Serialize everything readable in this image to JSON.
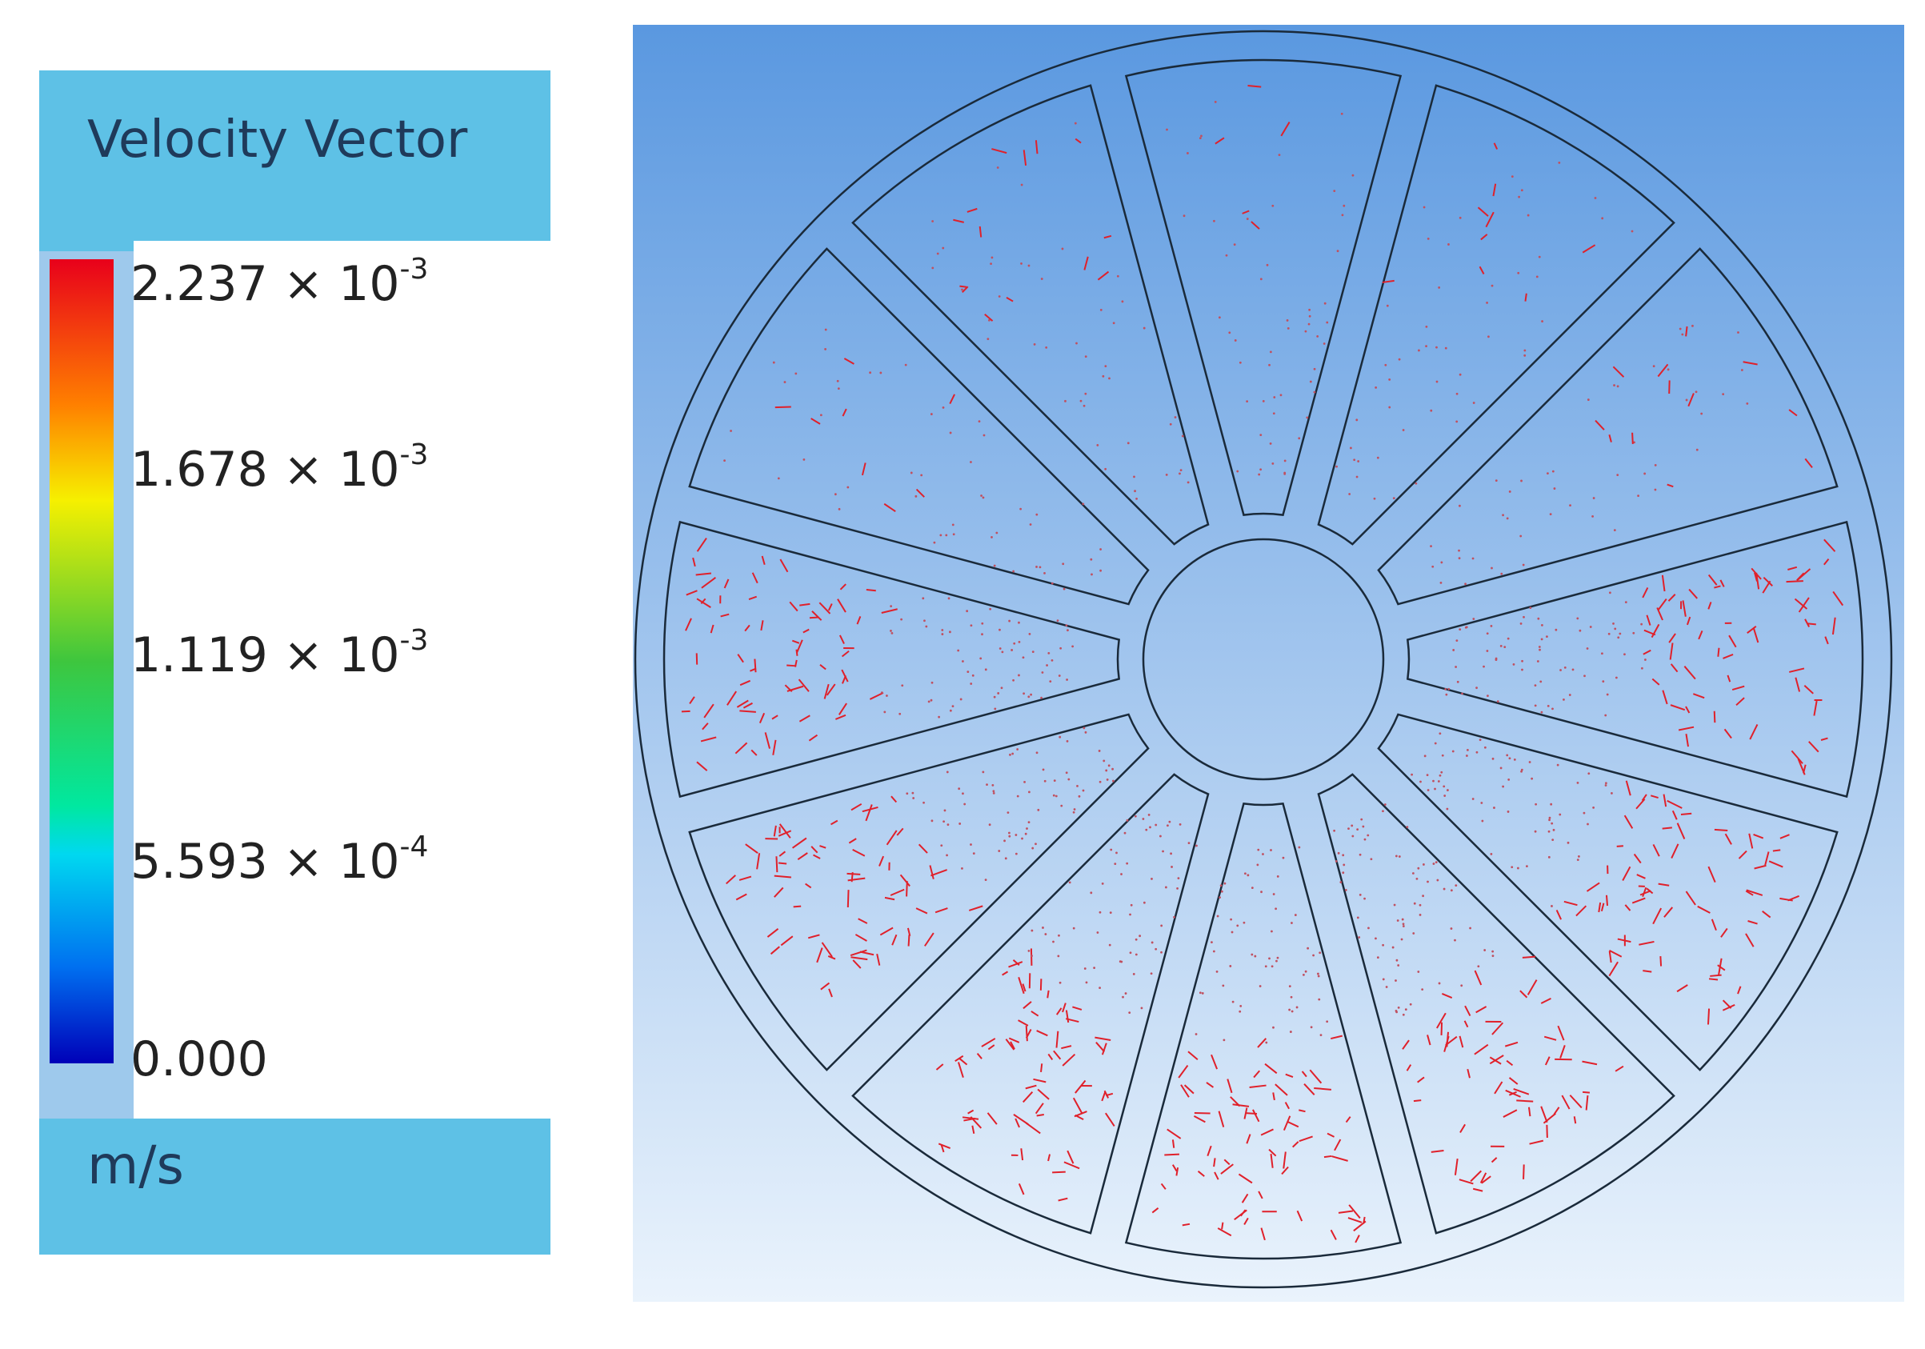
{
  "legend": {
    "title": "Velocity Vector",
    "ticks": [
      {
        "base": "2.237 × 10",
        "exp": "-3"
      },
      {
        "base": "1.678 × 10",
        "exp": "-3"
      },
      {
        "base": "1.119 × 10",
        "exp": "-3"
      },
      {
        "base": "5.593 × 10",
        "exp": "-4"
      },
      {
        "base": "0.000"
      }
    ],
    "unit": "m/s"
  }
}
